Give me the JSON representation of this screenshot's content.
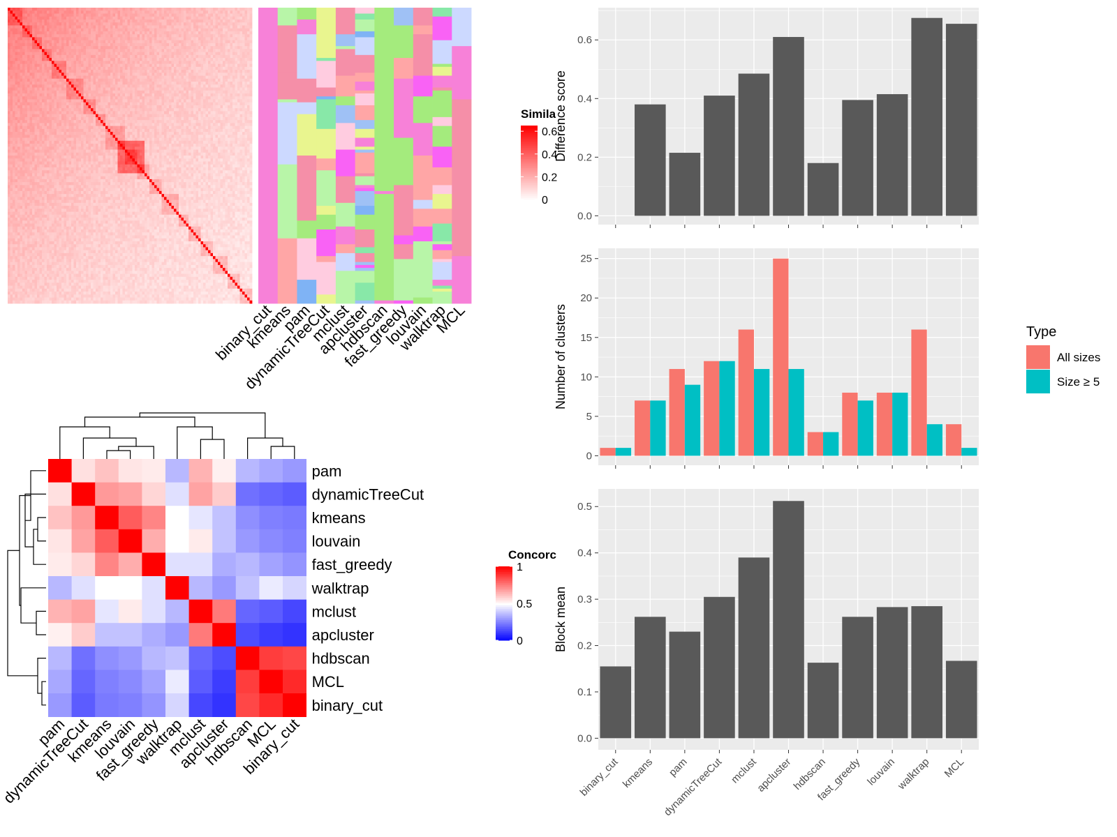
{
  "methods_order_hm2": [
    "pam",
    "dynamicTreeCut",
    "kmeans",
    "louvain",
    "fast_greedy",
    "walktrap",
    "mclust",
    "apcluster",
    "hdbscan",
    "MCL",
    "binary_cut"
  ],
  "methods_order_bars": [
    "binary_cut",
    "kmeans",
    "pam",
    "dynamicTreeCut",
    "mclust",
    "apcluster",
    "hdbscan",
    "fast_greedy",
    "louvain",
    "walktrap",
    "MCL"
  ],
  "methods_order_hm1": [
    "binary_cut",
    "kmeans",
    "pam",
    "dynamicTreeCut",
    "mclust",
    "apcluster",
    "hdbscan",
    "fast_greedy",
    "louvain",
    "walktrap",
    "MCL"
  ],
  "colors": {
    "all_sizes": "#F8766D",
    "size_ge5": "#00BFC4",
    "bar_gray": "#595959",
    "panel_bg": "#EBEBEB",
    "sim_high": "#FF0000",
    "conc_high": "#FF0000",
    "conc_mid": "#FFFFFF",
    "conc_low": "#0000FF",
    "cluster_palette": [
      "#F781D8",
      "#A4EB7D",
      "#CCD9FF",
      "#F58FA8",
      "#B8F5A8",
      "#F962F5",
      "#FFA6A6",
      "#9FC1F5",
      "#E9F58F",
      "#FFCCE0",
      "#7FB3F5",
      "#88E8A8"
    ]
  },
  "heatmap1": {
    "legend_title": "Simila",
    "legend_ticks": [
      "0.6",
      "0.4",
      "0.2",
      "0"
    ],
    "legend_values": [
      0.6,
      0.4,
      0.2,
      0.0
    ],
    "n_items": 100
  },
  "heatmap2": {
    "legend_title": "Concorc",
    "legend_ticks": [
      "1",
      "0.5",
      "0"
    ],
    "legend_values": [
      1.0,
      0.5,
      0.0
    ]
  },
  "chart_data": [
    {
      "type": "bar",
      "categories": [
        "binary_cut",
        "kmeans",
        "pam",
        "dynamicTreeCut",
        "mclust",
        "apcluster",
        "hdbscan",
        "fast_greedy",
        "louvain",
        "walktrap",
        "MCL"
      ],
      "values": [
        0.0,
        0.38,
        0.215,
        0.41,
        0.485,
        0.61,
        0.18,
        0.395,
        0.415,
        0.675,
        0.655
      ],
      "xlabel": "",
      "ylabel": "Difference score",
      "ylim": [
        -0.03,
        0.71
      ],
      "yticks": [
        "0.0",
        "0.2",
        "0.4",
        "0.6"
      ],
      "ytick_values": [
        0.0,
        0.2,
        0.4,
        0.6
      ],
      "grid": true
    },
    {
      "type": "bar",
      "categories": [
        "binary_cut",
        "kmeans",
        "pam",
        "dynamicTreeCut",
        "mclust",
        "apcluster",
        "hdbscan",
        "fast_greedy",
        "louvain",
        "walktrap",
        "MCL"
      ],
      "series": [
        {
          "name": "All sizes",
          "values": [
            1,
            7,
            11,
            12,
            16,
            25,
            3,
            8,
            8,
            16,
            4
          ]
        },
        {
          "name": "Size ≥ 5",
          "values": [
            1,
            7,
            9,
            12,
            11,
            11,
            3,
            7,
            8,
            4,
            1
          ]
        }
      ],
      "xlabel": "",
      "ylabel": "Number of clusters",
      "ylim": [
        -1.2,
        26.3
      ],
      "yticks": [
        "0",
        "5",
        "10",
        "15",
        "20",
        "25"
      ],
      "ytick_values": [
        0,
        5,
        10,
        15,
        20,
        25
      ],
      "legend_title": "Type",
      "legend_position": "right",
      "grid": true
    },
    {
      "type": "bar",
      "categories": [
        "binary_cut",
        "kmeans",
        "pam",
        "dynamicTreeCut",
        "mclust",
        "apcluster",
        "hdbscan",
        "fast_greedy",
        "louvain",
        "walktrap",
        "MCL"
      ],
      "values": [
        0.155,
        0.262,
        0.23,
        0.305,
        0.39,
        0.512,
        0.163,
        0.262,
        0.283,
        0.285,
        0.167
      ],
      "xlabel": "",
      "ylabel": "Block mean",
      "ylim": [
        -0.025,
        0.538
      ],
      "yticks": [
        "0.0",
        "0.1",
        "0.2",
        "0.3",
        "0.4",
        "0.5"
      ],
      "ytick_values": [
        0.0,
        0.1,
        0.2,
        0.3,
        0.4,
        0.5
      ],
      "grid": true
    },
    {
      "type": "heatmap",
      "rows": [
        "pam",
        "dynamicTreeCut",
        "kmeans",
        "louvain",
        "fast_greedy",
        "walktrap",
        "mclust",
        "apcluster",
        "hdbscan",
        "MCL",
        "binary_cut"
      ],
      "columns": [
        "pam",
        "dynamicTreeCut",
        "kmeans",
        "louvain",
        "fast_greedy",
        "walktrap",
        "mclust",
        "apcluster",
        "hdbscan",
        "MCL",
        "binary_cut"
      ],
      "values": [
        [
          1.0,
          0.56,
          0.62,
          0.55,
          0.54,
          0.36,
          0.65,
          0.53,
          0.36,
          0.33,
          0.3
        ],
        [
          0.56,
          1.0,
          0.7,
          0.68,
          0.58,
          0.44,
          0.68,
          0.6,
          0.22,
          0.2,
          0.18
        ],
        [
          0.62,
          0.7,
          1.0,
          0.82,
          0.74,
          0.5,
          0.45,
          0.38,
          0.28,
          0.25,
          0.24
        ],
        [
          0.55,
          0.68,
          0.82,
          1.0,
          0.66,
          0.5,
          0.54,
          0.38,
          0.3,
          0.27,
          0.25
        ],
        [
          0.54,
          0.58,
          0.74,
          0.66,
          1.0,
          0.44,
          0.44,
          0.34,
          0.36,
          0.32,
          0.29
        ],
        [
          0.36,
          0.44,
          0.5,
          0.5,
          0.44,
          1.0,
          0.36,
          0.3,
          0.38,
          0.46,
          0.42
        ],
        [
          0.65,
          0.68,
          0.45,
          0.54,
          0.44,
          0.36,
          1.0,
          0.76,
          0.2,
          0.18,
          0.14
        ],
        [
          0.53,
          0.6,
          0.38,
          0.38,
          0.34,
          0.3,
          0.76,
          1.0,
          0.15,
          0.12,
          0.1
        ],
        [
          0.36,
          0.22,
          0.28,
          0.3,
          0.36,
          0.38,
          0.2,
          0.15,
          1.0,
          0.88,
          0.86
        ],
        [
          0.33,
          0.2,
          0.25,
          0.27,
          0.32,
          0.46,
          0.18,
          0.12,
          0.88,
          1.0,
          0.92
        ],
        [
          0.3,
          0.18,
          0.24,
          0.25,
          0.29,
          0.42,
          0.14,
          0.1,
          0.86,
          0.92,
          1.0
        ]
      ]
    }
  ]
}
